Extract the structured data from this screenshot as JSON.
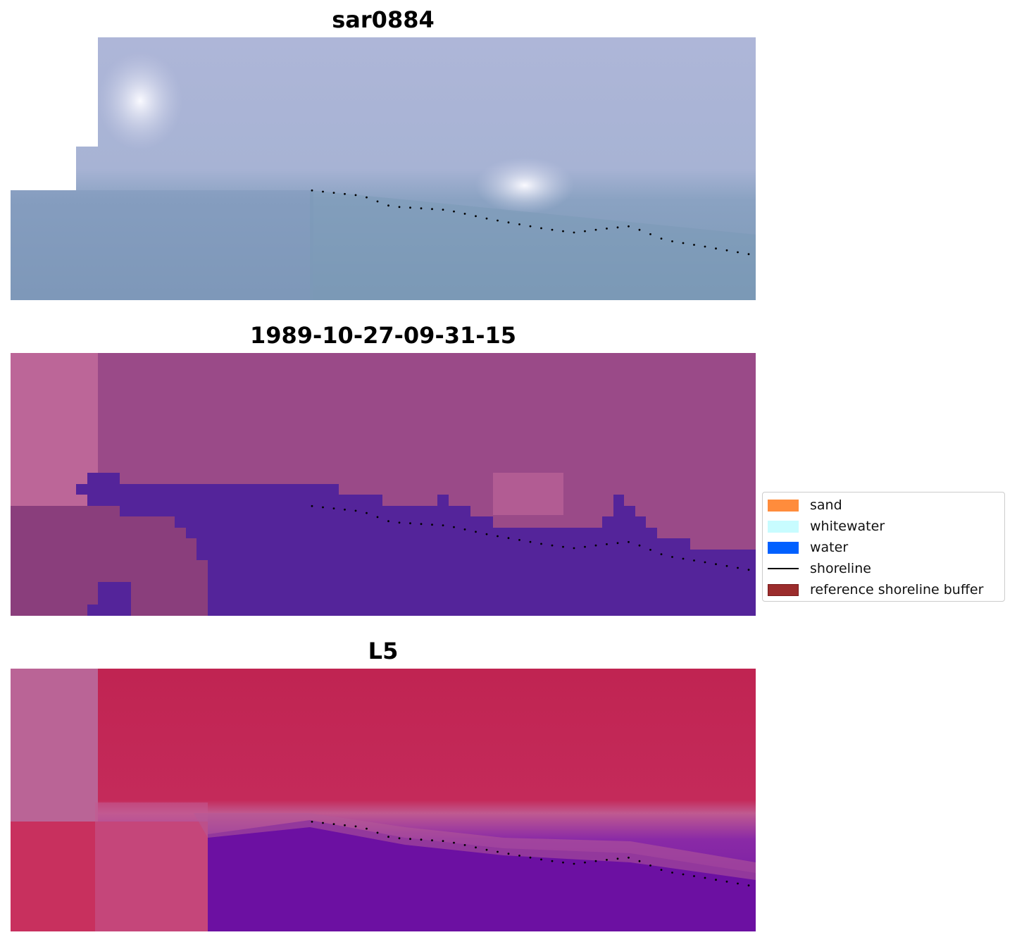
{
  "panels": [
    {
      "title": "sar0884",
      "kind": "rgb"
    },
    {
      "title": "1989-10-27-09-31-15",
      "kind": "classified"
    },
    {
      "title": "L5",
      "kind": "index"
    }
  ],
  "legend": {
    "items": [
      {
        "label": "sand",
        "color": "#ff8c3c",
        "type": "patch"
      },
      {
        "label": "whitewater",
        "color": "#c8fcff",
        "type": "patch"
      },
      {
        "label": "water",
        "color": "#0060ff",
        "type": "patch"
      },
      {
        "label": "shoreline",
        "color": "#000000",
        "type": "line"
      },
      {
        "label": "reference shoreline buffer",
        "color": "#9b2c2c",
        "type": "patch"
      }
    ]
  },
  "colors": {
    "rgb_sky": "#aab4d6",
    "rgb_water": "#7896b6",
    "rgb_white_patch": "#f4f4fa",
    "class_land": "#9a4c8a",
    "class_land_light": "#bc6698",
    "class_water": "#54249a",
    "index_land": "#c02456",
    "index_land_light": "#ba6496",
    "index_water": "#6a10a0",
    "shoreline_dots": "#000000"
  }
}
